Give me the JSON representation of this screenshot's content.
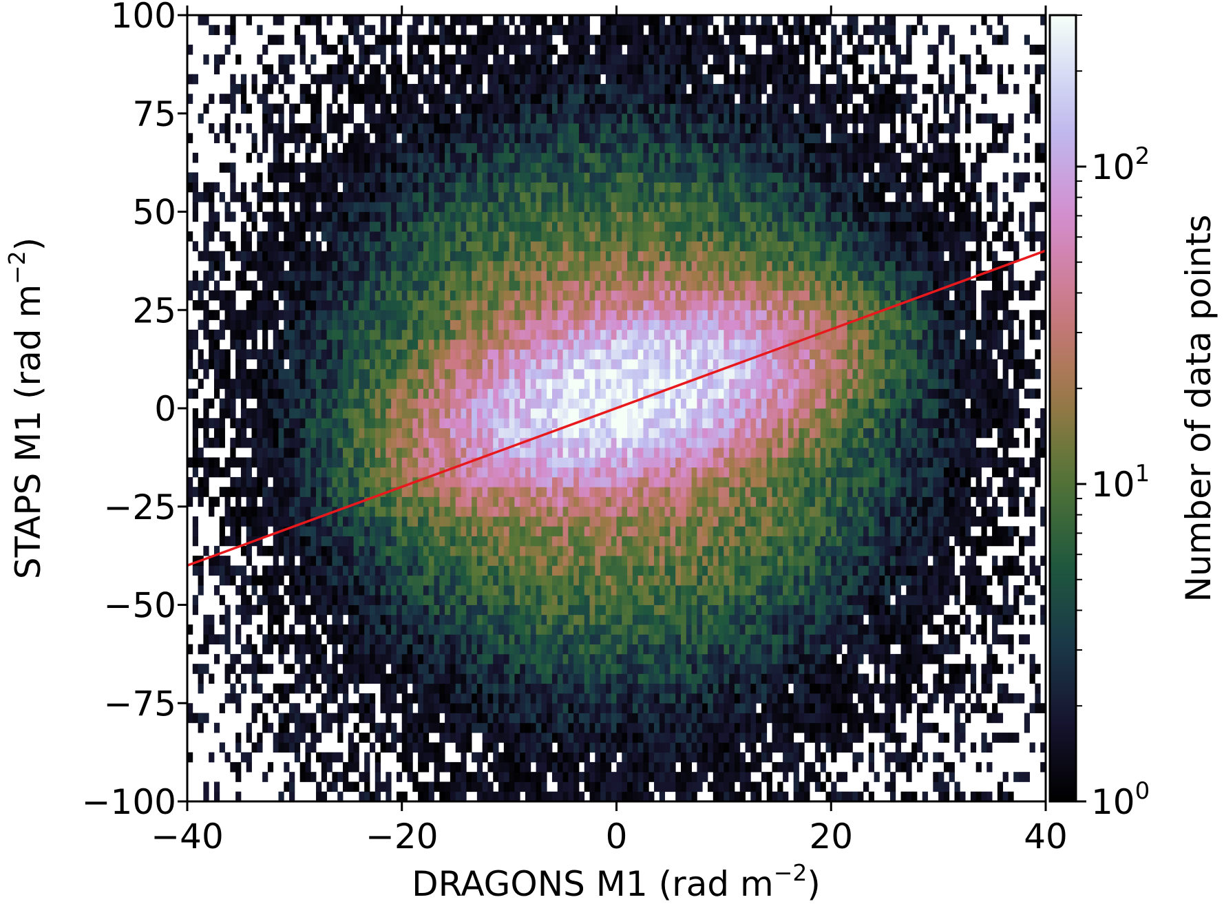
{
  "chart_data": {
    "type": "heatmap",
    "title": "",
    "xlabel": "DRAGONS M1 (rad m",
    "xlabel_sup": "−2",
    "xlabel_tail": ")",
    "ylabel": "STAPS M1 (rad m",
    "ylabel_sup": "−2",
    "ylabel_tail": ")",
    "xlim": [
      -40,
      40
    ],
    "ylim": [
      -100,
      100
    ],
    "x_ticks": [
      -40,
      -20,
      0,
      20,
      40
    ],
    "x_tick_labels": [
      "−40",
      "−20",
      "0",
      "20",
      "40"
    ],
    "y_ticks": [
      -100,
      -75,
      -50,
      -25,
      0,
      25,
      50,
      75,
      100
    ],
    "y_tick_labels": [
      "−100",
      "−75",
      "−50",
      "−25",
      "0",
      "25",
      "50",
      "75",
      "100"
    ],
    "grid": false,
    "colormap": "cubehelix",
    "density_peak": {
      "x": 3,
      "y": 5,
      "max_count": 250
    },
    "bin_size": {
      "x": 0.5,
      "y": 2.5
    },
    "fit_line": {
      "color": "#e8191c",
      "points": [
        [
          -40,
          -40
        ],
        [
          40,
          40.1
        ]
      ]
    },
    "colorbar": {
      "label": "Number of data points",
      "scale": "log",
      "range": [
        1,
        300
      ],
      "major_ticks": [
        {
          "value": 1,
          "base": "10",
          "exp": "0"
        },
        {
          "value": 10,
          "base": "10",
          "exp": "1"
        },
        {
          "value": 100,
          "base": "10",
          "exp": "2"
        }
      ],
      "minor_ticks": [
        2,
        3,
        4,
        5,
        6,
        7,
        8,
        9,
        20,
        30,
        40,
        50,
        60,
        70,
        80,
        90,
        200,
        300
      ]
    }
  }
}
